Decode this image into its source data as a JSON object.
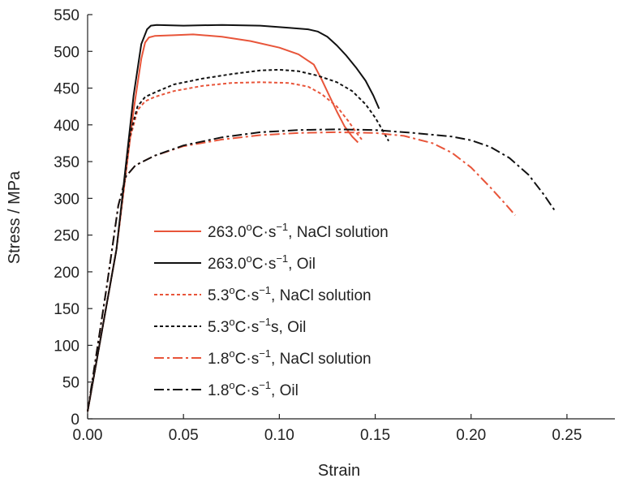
{
  "chart_data": {
    "type": "line",
    "title": "",
    "xlabel": "Strain",
    "ylabel": "Stress / MPa",
    "xlim": [
      0,
      0.275
    ],
    "ylim": [
      0,
      550
    ],
    "x_ticks": [
      "0.00",
      "0.05",
      "0.10",
      "0.15",
      "0.20",
      "0.25"
    ],
    "x_tick_values": [
      0,
      0.05,
      0.1,
      0.15,
      0.2,
      0.25
    ],
    "y_ticks": [
      "0",
      "50",
      "100",
      "150",
      "200",
      "250",
      "300",
      "350",
      "400",
      "450",
      "500",
      "550"
    ],
    "y_tick_values": [
      0,
      50,
      100,
      150,
      200,
      250,
      300,
      350,
      400,
      450,
      500,
      550
    ],
    "grid": false,
    "legend_position": "center-left",
    "series": [
      {
        "rate": "263.0",
        "unit_sup": "o",
        "unit_mid": "C·s",
        "unit_exp": "−1",
        "suffix": "",
        "medium": ", NaCl solution",
        "color": "#e8553a",
        "dash": "solid",
        "x": [
          0,
          0.015,
          0.024,
          0.028,
          0.03,
          0.032,
          0.035,
          0.045,
          0.055,
          0.07,
          0.085,
          0.1,
          0.11,
          0.118,
          0.122,
          0.126,
          0.13,
          0.134,
          0.138,
          0.141
        ],
        "y": [
          10,
          230,
          420,
          490,
          512,
          519,
          521,
          522,
          523,
          520,
          514,
          505,
          496,
          482,
          462,
          440,
          418,
          398,
          384,
          376
        ]
      },
      {
        "rate": "263.0",
        "unit_sup": "o",
        "unit_mid": "C·s",
        "unit_exp": "−1",
        "suffix": "",
        "medium": ", Oil",
        "color": "#111111",
        "dash": "solid",
        "x": [
          0,
          0.015,
          0.024,
          0.028,
          0.031,
          0.033,
          0.036,
          0.05,
          0.07,
          0.09,
          0.105,
          0.115,
          0.12,
          0.125,
          0.13,
          0.135,
          0.14,
          0.145,
          0.149,
          0.152
        ],
        "y": [
          10,
          230,
          440,
          510,
          530,
          535,
          536,
          535,
          536,
          535,
          532,
          530,
          527,
          520,
          508,
          494,
          478,
          460,
          440,
          422
        ]
      },
      {
        "rate": "5.3",
        "unit_sup": "o",
        "unit_mid": "C·s",
        "unit_exp": "−1",
        "suffix": "",
        "medium": ", NaCl solution",
        "color": "#e8553a",
        "dash": "dot",
        "x": [
          0,
          0.015,
          0.022,
          0.026,
          0.03,
          0.035,
          0.045,
          0.06,
          0.075,
          0.09,
          0.105,
          0.115,
          0.122,
          0.13,
          0.136,
          0.14,
          0.143
        ],
        "y": [
          10,
          230,
          380,
          420,
          432,
          438,
          446,
          453,
          457,
          458,
          457,
          452,
          442,
          425,
          405,
          390,
          380
        ]
      },
      {
        "rate": "5.3",
        "unit_sup": "o",
        "unit_mid": "C·s",
        "unit_exp": "−1",
        "suffix": "s",
        "medium": ", Oil",
        "color": "#111111",
        "dash": "dot",
        "x": [
          0,
          0.015,
          0.022,
          0.026,
          0.03,
          0.035,
          0.045,
          0.06,
          0.075,
          0.09,
          0.1,
          0.11,
          0.12,
          0.13,
          0.138,
          0.145,
          0.15,
          0.154,
          0.157
        ],
        "y": [
          10,
          230,
          385,
          425,
          438,
          444,
          455,
          463,
          469,
          474,
          475,
          473,
          467,
          458,
          446,
          428,
          410,
          392,
          378
        ]
      },
      {
        "rate": "1.8",
        "unit_sup": "o",
        "unit_mid": "C·s",
        "unit_exp": "−1",
        "suffix": "",
        "medium": ", NaCl solution",
        "color": "#e8553a",
        "dash": "dashdot",
        "x": [
          0,
          0.01,
          0.016,
          0.02,
          0.025,
          0.035,
          0.05,
          0.07,
          0.09,
          0.11,
          0.13,
          0.15,
          0.165,
          0.18,
          0.19,
          0.2,
          0.21,
          0.218,
          0.223
        ],
        "y": [
          10,
          180,
          290,
          330,
          345,
          358,
          371,
          380,
          386,
          389,
          390,
          389,
          385,
          375,
          362,
          342,
          315,
          292,
          277
        ]
      },
      {
        "rate": "1.8",
        "unit_sup": "o",
        "unit_mid": "C·s",
        "unit_exp": "−1",
        "suffix": "",
        "medium": ", Oil",
        "color": "#111111",
        "dash": "dashdot",
        "x": [
          0,
          0.01,
          0.016,
          0.02,
          0.025,
          0.035,
          0.05,
          0.07,
          0.09,
          0.11,
          0.13,
          0.15,
          0.17,
          0.19,
          0.2,
          0.21,
          0.22,
          0.23,
          0.238,
          0.244
        ],
        "y": [
          10,
          180,
          290,
          330,
          345,
          358,
          372,
          383,
          390,
          393,
          394,
          393,
          389,
          384,
          379,
          370,
          355,
          332,
          305,
          282
        ]
      }
    ]
  }
}
